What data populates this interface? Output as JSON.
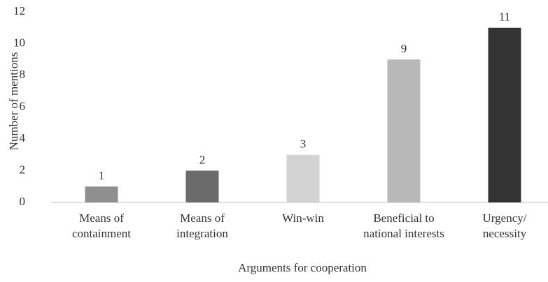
{
  "chart_data": {
    "type": "bar",
    "categories": [
      "Means of containment",
      "Means of integration",
      "Win-win",
      "Beneficial to national interests",
      "Urgency/ necessity"
    ],
    "values": [
      1,
      2,
      3,
      9,
      11
    ],
    "colors": [
      "#8f8f8f",
      "#6b6b6b",
      "#d3d3d3",
      "#b8b8b8",
      "#333333"
    ],
    "ylim": [
      0,
      12
    ],
    "yticks": [
      0,
      2,
      4,
      6,
      8,
      10,
      12
    ],
    "ylabel": "Number of mentions",
    "xlabel": "Arguments for cooperation",
    "grid": false
  }
}
